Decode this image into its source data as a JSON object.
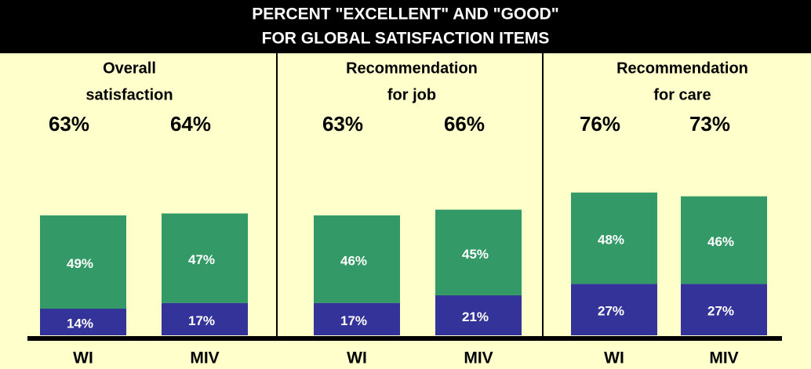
{
  "chart_data": {
    "type": "stacked-bar",
    "title_lines": [
      "PERCENT \"EXCELLENT\" AND \"GOOD\"",
      "FOR GLOBAL SATISFACTION ITEMS"
    ],
    "group_labels": [
      [
        "Overall",
        "satisfaction"
      ],
      [
        "Recommendation",
        "for job"
      ],
      [
        "Recommendation",
        "for care"
      ]
    ],
    "categories": [
      "WI",
      "MIV",
      "WI",
      "MIV",
      "WI",
      "MIV"
    ],
    "totals": [
      63,
      64,
      63,
      66,
      76,
      73
    ],
    "total_labels": [
      "63%",
      "64%",
      "63%",
      "66%",
      "76%",
      "73%"
    ],
    "series": [
      {
        "color": "#333399",
        "values": [
          14,
          17,
          17,
          21,
          27,
          27
        ],
        "value_labels": [
          "14%",
          "17%",
          "17%",
          "21%",
          "27%",
          "27%"
        ]
      },
      {
        "color": "#339966",
        "values": [
          49,
          47,
          46,
          45,
          48,
          46
        ],
        "value_labels": [
          "49%",
          "47%",
          "46%",
          "45%",
          "48%",
          "46%"
        ]
      }
    ]
  }
}
